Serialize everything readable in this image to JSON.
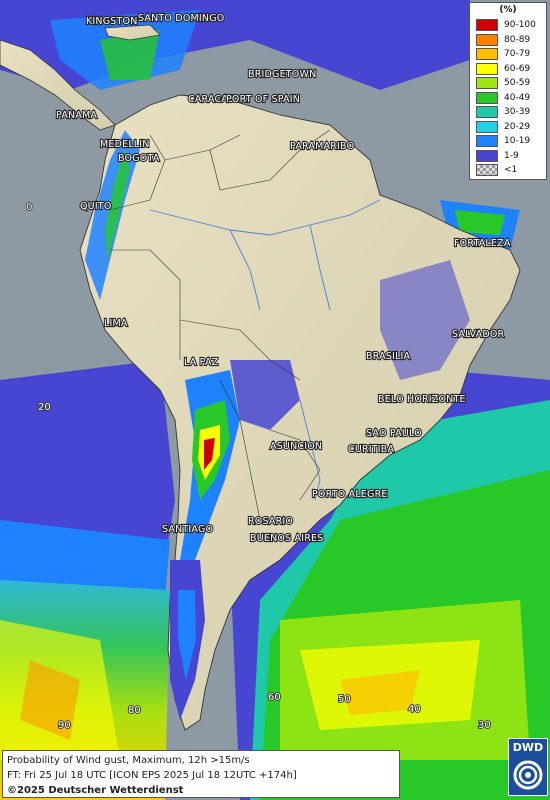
{
  "legend": {
    "unit": "(%)",
    "classes": [
      {
        "label": "90-100",
        "color": "#d10000"
      },
      {
        "label": "80-89",
        "color": "#ff7f00"
      },
      {
        "label": "70-79",
        "color": "#ffbf00"
      },
      {
        "label": "60-69",
        "color": "#ffff00"
      },
      {
        "label": "50-59",
        "color": "#9fe80f"
      },
      {
        "label": "40-49",
        "color": "#28c828"
      },
      {
        "label": "30-39",
        "color": "#1ec8a8"
      },
      {
        "label": "20-29",
        "color": "#21d1e6"
      },
      {
        "label": "10-19",
        "color": "#1e82ff"
      },
      {
        "label": "1-9",
        "color": "#4646d2"
      },
      {
        "label": "<1",
        "color": "checker"
      }
    ]
  },
  "cities": [
    "KINGSTON",
    "SANTO DOMINGO",
    "BRIDGETOWN",
    "CARACAS",
    "PORT OF SPAIN",
    "PANAMA",
    "MEDELLIN",
    "BOGOTA",
    "PARAMARIBO",
    "QUITO",
    "FORTALEZA",
    "LIMA",
    "SALVADOR",
    "BRASILIA",
    "LA PAZ",
    "BELO HORIZONTE",
    "SAO PAULO",
    "ASUNCION",
    "CURITIBA",
    "PORTO ALEGRE",
    "ROSARIO",
    "BUENOS AIRES",
    "SANTIAGO"
  ],
  "lat_labels": [
    "0",
    "20"
  ],
  "lon_labels": [
    "90",
    "80",
    "60",
    "50",
    "40",
    "30"
  ],
  "info": {
    "line1": "Probability of Wind gust, Maximum, 12h >15m/s",
    "line2": "FT: Fri 25 Jul 18 UTC [ICON EPS 2025 Jul 18 12UTC +174h]",
    "line3": "©2025 Deutscher Wetterdienst"
  },
  "logo": {
    "text": "DWD"
  }
}
